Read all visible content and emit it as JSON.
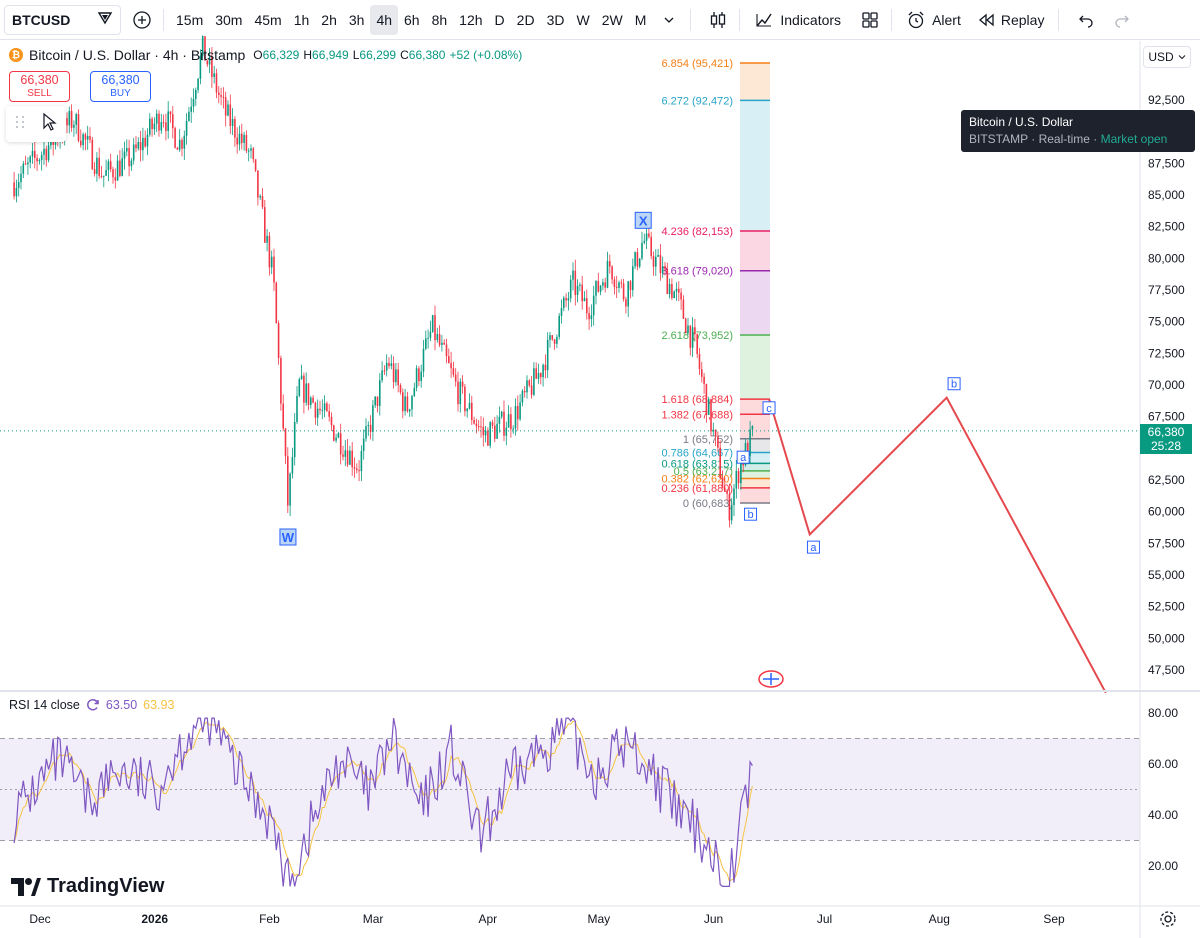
{
  "toolbar": {
    "symbol": "BTCUSD",
    "timeframes": [
      "15m",
      "30m",
      "45m",
      "1h",
      "2h",
      "3h",
      "4h",
      "6h",
      "8h",
      "12h",
      "D",
      "2D",
      "3D",
      "W",
      "2W",
      "M"
    ],
    "active_timeframe": "4h",
    "indicators_label": "Indicators",
    "alert_label": "Alert",
    "replay_label": "Replay"
  },
  "legend": {
    "title": "Bitcoin / U.S. Dollar · 4h · Bitstamp",
    "open_k": "O",
    "open": "66,329",
    "high_k": "H",
    "high": "66,949",
    "low_k": "L",
    "low": "66,299",
    "close_k": "C",
    "close": "66,380",
    "change": "+52 (+0.08%)"
  },
  "trade": {
    "sell_price": "66,380",
    "sell_label": "SELL",
    "buy_price": "66,380",
    "buy_label": "BUY"
  },
  "currency": "USD",
  "tooltip": {
    "name": "Bitcoin / U.S. Dollar",
    "exchange": "BITSTAMP",
    "feed": "Real-time",
    "status": "Market open"
  },
  "price_tag": {
    "price": "66,380",
    "countdown": "25:28"
  },
  "rsi": {
    "label": "RSI 14 close",
    "value": "63.50",
    "ma_value": "63.93"
  },
  "brand": "TradingView",
  "colors": {
    "up": "#089981",
    "down": "#f23645",
    "rsi": "#7e57c2",
    "rsi_ma": "#f5c344",
    "projection": "#e5484d"
  },
  "chart_data": [
    {
      "type": "candlestick",
      "symbol": "BTCUSD",
      "price_axis": [
        "92,500",
        "90,000",
        "87,500",
        "85,000",
        "82,500",
        "80,000",
        "77,500",
        "75,000",
        "72,500",
        "70,000",
        "67,500",
        "65,000",
        "62,500",
        "60,000",
        "57,500",
        "55,000",
        "52,500",
        "50,000",
        "47,500"
      ],
      "time_axis": [
        "Dec",
        "2026",
        "Feb",
        "Mar",
        "Apr",
        "May",
        "Jun",
        "Jul",
        "Aug",
        "Sep"
      ],
      "price_path": [
        {
          "x": "Nov 24",
          "y": 86000
        },
        {
          "x": "Dec 2",
          "y": 88500
        },
        {
          "x": "Dec 10",
          "y": 91000
        },
        {
          "x": "Dec 18",
          "y": 86500
        },
        {
          "x": "Dec 26",
          "y": 88000
        },
        {
          "x": "Jan 3",
          "y": 91500
        },
        {
          "x": "Jan 8",
          "y": 89000
        },
        {
          "x": "Jan 14",
          "y": 96500
        },
        {
          "x": "Jan 20",
          "y": 91500
        },
        {
          "x": "Jan 27",
          "y": 88000
        },
        {
          "x": "Feb 2",
          "y": 78500
        },
        {
          "x": "Feb 6",
          "y": 60500
        },
        {
          "x": "Feb 9",
          "y": 70000
        },
        {
          "x": "Feb 16",
          "y": 67500
        },
        {
          "x": "Feb 25",
          "y": 63500
        },
        {
          "x": "Mar 5",
          "y": 72000
        },
        {
          "x": "Mar 10",
          "y": 68000
        },
        {
          "x": "Mar 17",
          "y": 74500
        },
        {
          "x": "Mar 24",
          "y": 69500
        },
        {
          "x": "Mar 31",
          "y": 66000
        },
        {
          "x": "Apr 8",
          "y": 67500
        },
        {
          "x": "Apr 15",
          "y": 71000
        },
        {
          "x": "Apr 24",
          "y": 78000
        },
        {
          "x": "Apr 28",
          "y": 76000
        },
        {
          "x": "May 4",
          "y": 79500
        },
        {
          "x": "May 8",
          "y": 77000
        },
        {
          "x": "May 13",
          "y": 81500
        },
        {
          "x": "May 17",
          "y": 79500
        },
        {
          "x": "May 22",
          "y": 77000
        },
        {
          "x": "May 27",
          "y": 73000
        },
        {
          "x": "Jun 1",
          "y": 66000
        },
        {
          "x": "Jun 5",
          "y": 60000
        },
        {
          "x": "Jun 8",
          "y": 63500
        },
        {
          "x": "Jun 12",
          "y": 66380
        }
      ],
      "fib_levels": [
        {
          "ratio": "6.854",
          "price": 95421,
          "label": "6.854 (95,421)",
          "color": "#f57f17"
        },
        {
          "ratio": "6.272",
          "price": 92472,
          "label": "6.272 (92,472)",
          "color": "#26a5c8"
        },
        {
          "ratio": "4.236",
          "price": 82153,
          "label": "4.236 (82,153)",
          "color": "#e91e63"
        },
        {
          "ratio": "3.618",
          "price": 79020,
          "label": "3.618 (79,020)",
          "color": "#9c27b0"
        },
        {
          "ratio": "2.618",
          "price": 73952,
          "label": "2.618 (73,952)",
          "color": "#4caf50"
        },
        {
          "ratio": "1.618",
          "price": 68884,
          "label": "1.618 (68,884)",
          "color": "#f23645"
        },
        {
          "ratio": "1.382",
          "price": 67688,
          "label": "1.382 (67,688)",
          "color": "#f23645"
        },
        {
          "ratio": "1",
          "price": 65752,
          "label": "1 (65,752)",
          "color": "#787b86"
        },
        {
          "ratio": "0.786",
          "price": 64667,
          "label": "0.786 (64,667)",
          "color": "#26a5c8"
        },
        {
          "ratio": "0.618",
          "price": 63815,
          "label": "0.618 (63,815)",
          "color": "#089981"
        },
        {
          "ratio": "0.5",
          "price": 63217,
          "label": "0.5 (63,217)",
          "color": "#4caf50"
        },
        {
          "ratio": "0.382",
          "price": 62620,
          "label": "0.382 (62,620)",
          "color": "#f57f17"
        },
        {
          "ratio": "0.236",
          "price": 61880,
          "label": "0.236 (61,880)",
          "color": "#f23645"
        },
        {
          "ratio": "0",
          "price": 60683,
          "label": "0 (60,683)",
          "color": "#787b86"
        }
      ],
      "wave_labels": [
        {
          "text": "W",
          "x": "Feb 6",
          "y": 58000
        },
        {
          "text": "X",
          "x": "May 13",
          "y": 83000
        },
        {
          "text": "a",
          "x": "Jun 9",
          "y": 64300
        },
        {
          "text": "b",
          "x": "Jun 11",
          "y": 59800
        },
        {
          "text": "c",
          "x": "Jun 16",
          "y": 68200
        },
        {
          "text": "a",
          "x": "Jun 28",
          "y": 57200
        },
        {
          "text": "b",
          "x": "Aug 5",
          "y": 70100
        }
      ],
      "projection": [
        {
          "x": "Jun 16",
          "y": 68900
        },
        {
          "x": "Jun 27",
          "y": 58200
        },
        {
          "x": "Aug 3",
          "y": 69000
        },
        {
          "x": "Sep 15",
          "y": 45700
        }
      ],
      "last_price": 66380
    },
    {
      "type": "line",
      "name": "RSI 14 close",
      "y_axis": [
        "80.00",
        "60.00",
        "40.00",
        "20.00"
      ],
      "bands": {
        "upper": 70,
        "middle": 50,
        "lower": 30
      },
      "x": [
        "Nov 24",
        "Dec 6",
        "Dec 14",
        "Dec 22",
        "Jan 1",
        "Jan 10",
        "Jan 16",
        "Jan 24",
        "Feb 1",
        "Feb 6",
        "Feb 12",
        "Feb 20",
        "Feb 28",
        "Mar 6",
        "Mar 14",
        "Mar 22",
        "Mar 30",
        "Apr 6",
        "Apr 14",
        "Apr 22",
        "Apr 30",
        "May 8",
        "May 14",
        "May 22",
        "May 30",
        "Jun 5",
        "Jun 12"
      ],
      "values": [
        40,
        62,
        45,
        58,
        50,
        72,
        78,
        55,
        40,
        12,
        35,
        62,
        48,
        70,
        42,
        66,
        30,
        52,
        64,
        74,
        56,
        68,
        60,
        42,
        30,
        12,
        63.5
      ]
    }
  ]
}
